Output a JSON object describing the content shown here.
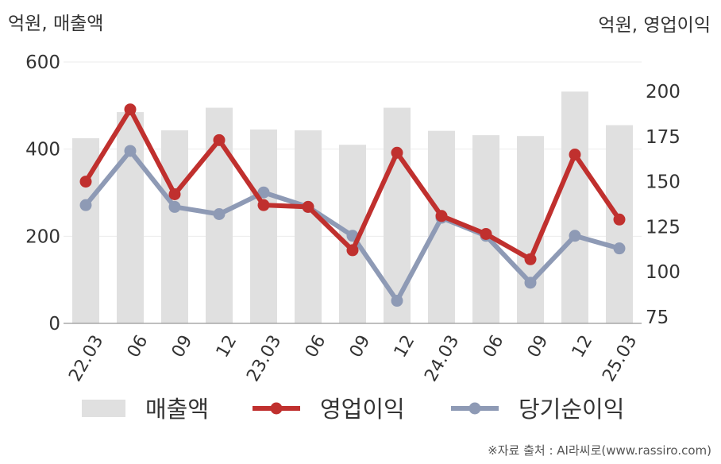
{
  "chart_data": {
    "type": "bar",
    "title": "",
    "left_axis_label": "억원, 매출액",
    "right_axis_label": "억원, 영업이익",
    "categories": [
      "22.03",
      "06",
      "09",
      "12",
      "23.03",
      "06",
      "09",
      "12",
      "24.03",
      "06",
      "09",
      "12",
      "25.03"
    ],
    "left_ylim": [
      0,
      600
    ],
    "left_yticks": [
      "0",
      "200",
      "400",
      "600"
    ],
    "right_ylim": [
      75,
      200
    ],
    "right_yticks": [
      "75",
      "100",
      "125",
      "150",
      "175",
      "200"
    ],
    "grid": true,
    "legend_position": "bottom",
    "series": [
      {
        "name": "매출액",
        "kind": "bar",
        "axis": "left",
        "color": "#e0e0e0",
        "values": [
          425,
          485,
          443,
          495,
          445,
          443,
          410,
          495,
          442,
          432,
          430,
          532,
          455
        ]
      },
      {
        "name": "영업이익",
        "kind": "line",
        "axis": "right",
        "color": "#c0302e",
        "values": [
          150,
          190,
          143,
          173,
          137,
          136,
          112,
          166,
          131,
          121,
          107,
          165,
          129
        ]
      },
      {
        "name": "당기순이익",
        "kind": "line",
        "axis": "right",
        "color": "#8e9ab5",
        "values": [
          137,
          167,
          136,
          132,
          144,
          136,
          120,
          84,
          130,
          120,
          94,
          120,
          113
        ]
      }
    ]
  },
  "source": "※자료 출처 : AI라씨로(www.rassiro.com)"
}
